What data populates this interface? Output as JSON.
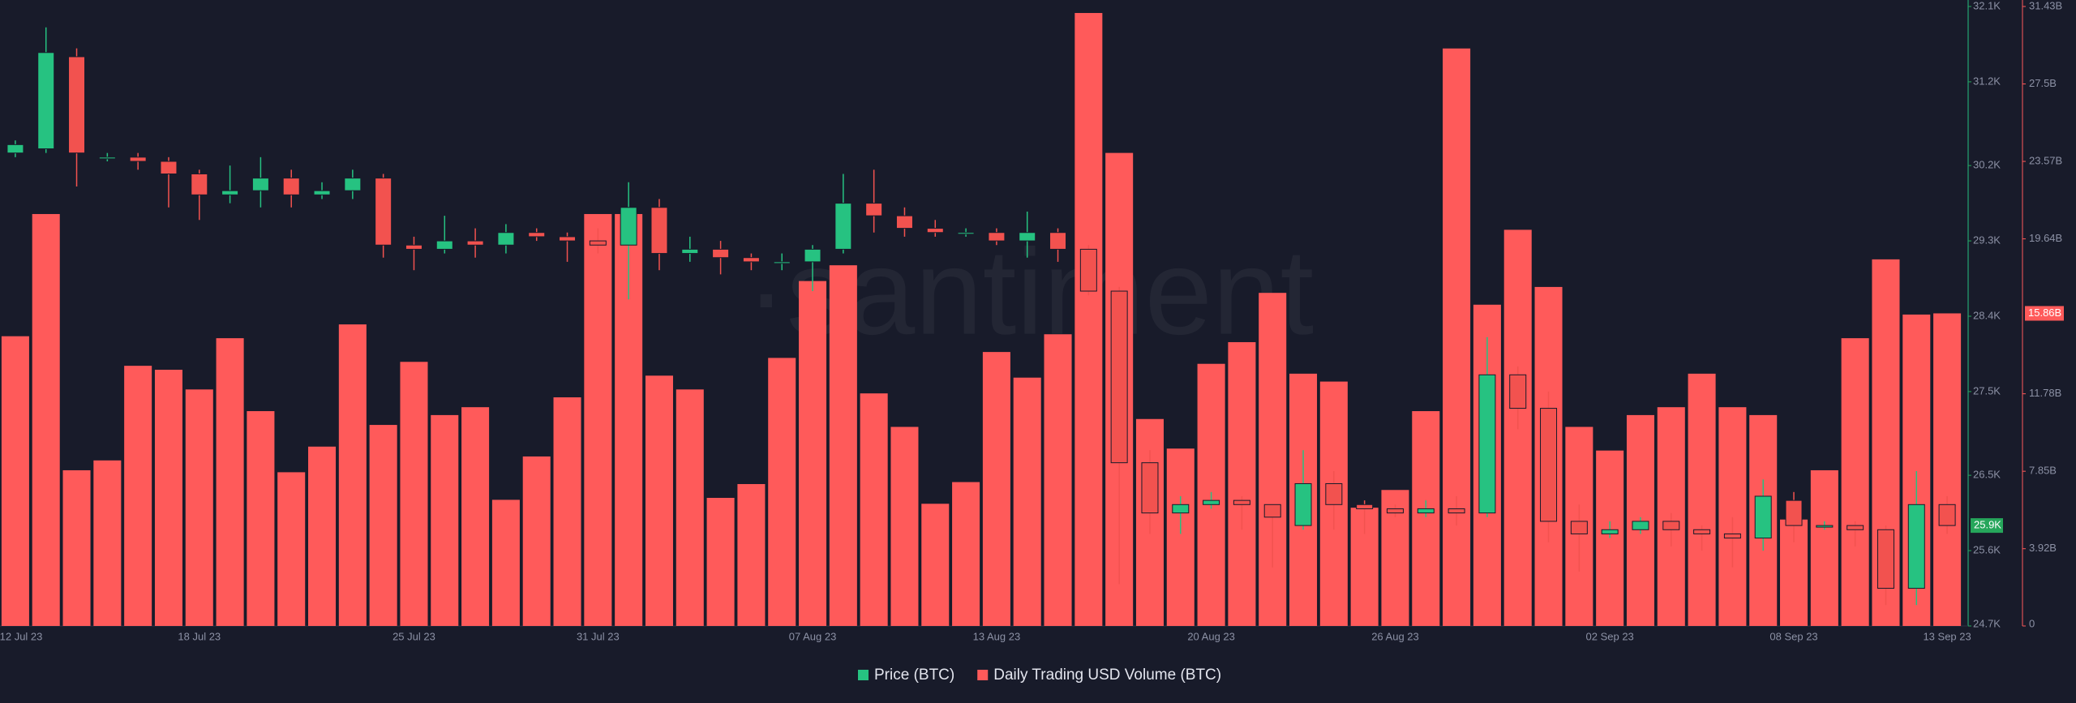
{
  "chart_data": {
    "type": "candlestick-volume",
    "watermark": "·santiment",
    "categories": [
      "12 Jul 23",
      null,
      null,
      null,
      null,
      null,
      "18 Jul 23",
      null,
      null,
      null,
      null,
      null,
      null,
      "25 Jul 23",
      null,
      null,
      null,
      null,
      null,
      "31 Jul 23",
      null,
      null,
      null,
      null,
      null,
      null,
      "07 Aug 23",
      null,
      null,
      null,
      null,
      null,
      "13 Aug 23",
      null,
      null,
      null,
      null,
      null,
      null,
      "20 Aug 23",
      null,
      null,
      null,
      null,
      null,
      "26 Aug 23",
      null,
      null,
      null,
      null,
      null,
      null,
      "02 Sep 23",
      null,
      null,
      null,
      null,
      null,
      "08 Sep 23",
      null,
      null,
      null,
      null,
      "13 Sep 23"
    ],
    "series": [
      {
        "name": "Price (BTC)",
        "type": "candlestick",
        "color": "#26c281",
        "down_color": "#f2524f",
        "open": [
          30350,
          30400,
          31500,
          30300,
          30300,
          30250,
          30100,
          29850,
          29900,
          30050,
          29850,
          29900,
          30050,
          29250,
          29200,
          29300,
          29250,
          29400,
          29350,
          29300,
          29250,
          29700,
          29150,
          29200,
          29100,
          29050,
          29050,
          29200,
          29750,
          29600,
          29450,
          29400,
          29400,
          29300,
          29400,
          29200,
          28700,
          26650,
          26050,
          26150,
          26200,
          26150,
          25900,
          26400,
          26150,
          26100,
          26050,
          26100,
          26050,
          27700,
          27300,
          25950,
          25800,
          25850,
          25950,
          25850,
          25800,
          25750,
          26200,
          25900,
          25900,
          25850,
          25150,
          26150
        ],
        "high": [
          30500,
          31850,
          31600,
          30350,
          30350,
          30300,
          30150,
          30200,
          30300,
          30150,
          30000,
          30150,
          30100,
          29350,
          29600,
          29450,
          29500,
          29450,
          29400,
          29450,
          30000,
          29800,
          29350,
          29300,
          29150,
          29150,
          29250,
          30100,
          30150,
          29700,
          29550,
          29450,
          29450,
          29650,
          29450,
          29250,
          28750,
          26800,
          26250,
          26300,
          26250,
          26150,
          26800,
          26550,
          26200,
          26150,
          26200,
          26250,
          28150,
          27800,
          27500,
          26150,
          25950,
          26000,
          26050,
          25900,
          26000,
          26450,
          26300,
          25950,
          25950,
          25900,
          26550,
          26250
        ],
        "low": [
          30300,
          30350,
          29950,
          30250,
          30150,
          29700,
          29550,
          29750,
          29700,
          29700,
          29800,
          29800,
          29100,
          28950,
          29150,
          29100,
          29150,
          29300,
          29050,
          29150,
          28600,
          28950,
          29050,
          28900,
          28950,
          28950,
          28700,
          29150,
          29400,
          29350,
          29350,
          29350,
          29250,
          29100,
          29050,
          28650,
          25200,
          25800,
          25800,
          26100,
          25850,
          25400,
          25850,
          25850,
          25800,
          26000,
          26000,
          25900,
          26000,
          27050,
          25700,
          25350,
          25750,
          25800,
          25650,
          25600,
          25400,
          25600,
          25700,
          25850,
          25650,
          24950,
          24950,
          25800
        ],
        "close": [
          30450,
          31550,
          30350,
          30300,
          30250,
          30100,
          29850,
          29900,
          30050,
          29850,
          29900,
          30050,
          29250,
          29200,
          29300,
          29250,
          29400,
          29350,
          29300,
          29250,
          29700,
          29150,
          29200,
          29100,
          29050,
          29050,
          29200,
          29750,
          29600,
          29450,
          29400,
          29400,
          29300,
          29400,
          29200,
          28700,
          26650,
          26050,
          26150,
          26200,
          26150,
          26000,
          26400,
          26150,
          26100,
          26050,
          26100,
          26050,
          27700,
          27300,
          25950,
          25800,
          25850,
          25950,
          25850,
          25800,
          25750,
          26250,
          25900,
          25900,
          25850,
          25150,
          26150,
          25900
        ]
      },
      {
        "name": "Daily Trading USD Volume (BTC)",
        "type": "bar",
        "axis": "y2",
        "color": "#ff5a5a",
        "values": [
          14.7,
          20.9,
          7.9,
          8.4,
          13.2,
          13.0,
          12.0,
          14.6,
          10.9,
          7.8,
          9.1,
          15.3,
          10.2,
          13.4,
          10.7,
          11.1,
          6.4,
          8.6,
          11.6,
          20.9,
          20.9,
          12.7,
          12.0,
          6.5,
          7.2,
          13.6,
          17.5,
          18.3,
          11.8,
          10.1,
          6.2,
          7.3,
          13.9,
          12.6,
          14.8,
          31.1,
          24.0,
          10.5,
          9.0,
          13.3,
          14.4,
          16.9,
          12.8,
          12.4,
          6.0,
          6.9,
          10.9,
          29.3,
          16.3,
          20.1,
          17.2,
          10.1,
          8.9,
          10.7,
          11.1,
          12.8,
          11.1,
          10.7,
          5.4,
          7.9,
          14.6,
          18.6,
          15.8,
          15.86
        ]
      }
    ],
    "ylim": [
      24700,
      32100
    ],
    "yticks": [
      {
        "value": 24700,
        "label": "24.7K"
      },
      {
        "value": 25600,
        "label": "25.6K"
      },
      {
        "value": 26500,
        "label": "26.5K"
      },
      {
        "value": 27500,
        "label": "27.5K"
      },
      {
        "value": 28400,
        "label": "28.4K"
      },
      {
        "value": 29300,
        "label": "29.3K"
      },
      {
        "value": 30200,
        "label": "30.2K"
      },
      {
        "value": 31200,
        "label": "31.2K"
      },
      {
        "value": 32100,
        "label": "32.1K"
      }
    ],
    "y2lim": [
      0,
      31.43
    ],
    "y2ticks": [
      0,
      {
        "value": 3.92,
        "label": "3.92B"
      },
      {
        "value": 7.85,
        "label": "7.85B"
      },
      {
        "value": 11.78,
        "label": "11.78B"
      },
      {
        "value": 19.64,
        "label": "19.64B"
      },
      {
        "value": 23.57,
        "label": "23.57B"
      },
      {
        "value": 27.5,
        "label": "27.5B"
      },
      {
        "value": 31.43,
        "label": "31.43B"
      }
    ],
    "price_badge": {
      "value": 25900,
      "label": "25.9K"
    },
    "volume_badge": {
      "value": 15.86,
      "label": "15.86B"
    },
    "grid": false
  }
}
